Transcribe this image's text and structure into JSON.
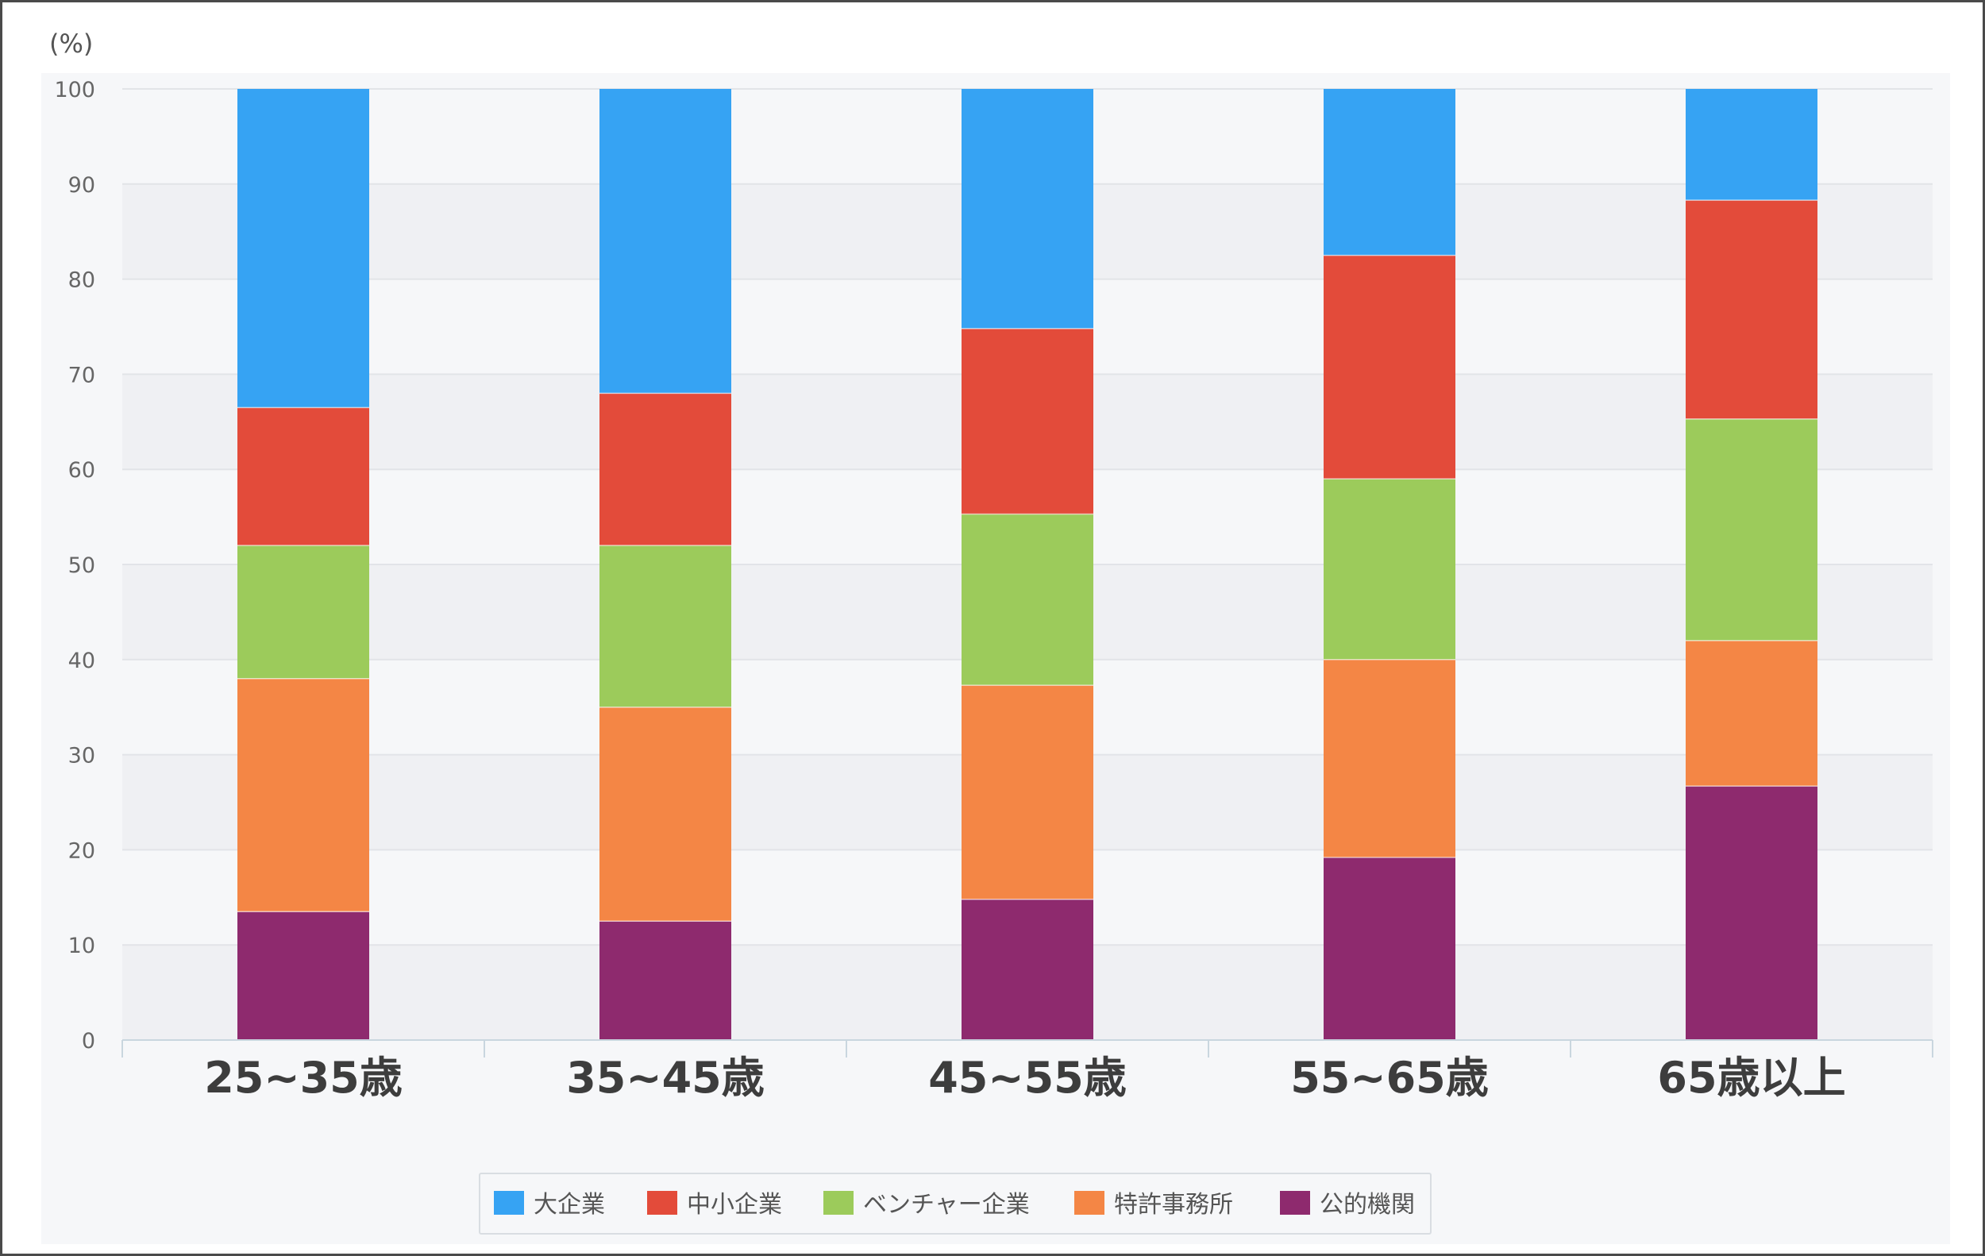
{
  "chart_data": {
    "type": "bar",
    "stacked": true,
    "unit_label": "(%)",
    "ylim": [
      0,
      100
    ],
    "yticks": [
      0,
      10,
      20,
      30,
      40,
      50,
      60,
      70,
      80,
      90,
      100
    ],
    "grid": true,
    "legend_position": "bottom-center",
    "categories": [
      "25~35歳",
      "35~45歳",
      "45~55歳",
      "55~65歳",
      "65歳以上"
    ],
    "series": [
      {
        "name": "公的機関",
        "color": "#8e2a6e",
        "values": [
          13.5,
          12.5,
          14.8,
          19.2,
          26.7
        ]
      },
      {
        "name": "特許事務所",
        "color": "#f48645",
        "values": [
          24.5,
          22.5,
          22.5,
          20.8,
          15.3
        ]
      },
      {
        "name": "ベンチャー企業",
        "color": "#9ccb5b",
        "values": [
          14.0,
          17.0,
          18.0,
          19.0,
          23.3
        ]
      },
      {
        "name": "中小企業",
        "color": "#e34b3a",
        "values": [
          14.5,
          16.0,
          19.5,
          23.5,
          23.0
        ]
      },
      {
        "name": "大企業",
        "color": "#36a3f3",
        "values": [
          33.5,
          32.0,
          25.2,
          17.5,
          11.7
        ]
      }
    ],
    "legend_order": [
      "大企業",
      "中小企業",
      "ベンチャー企業",
      "特許事務所",
      "公的機関"
    ]
  }
}
